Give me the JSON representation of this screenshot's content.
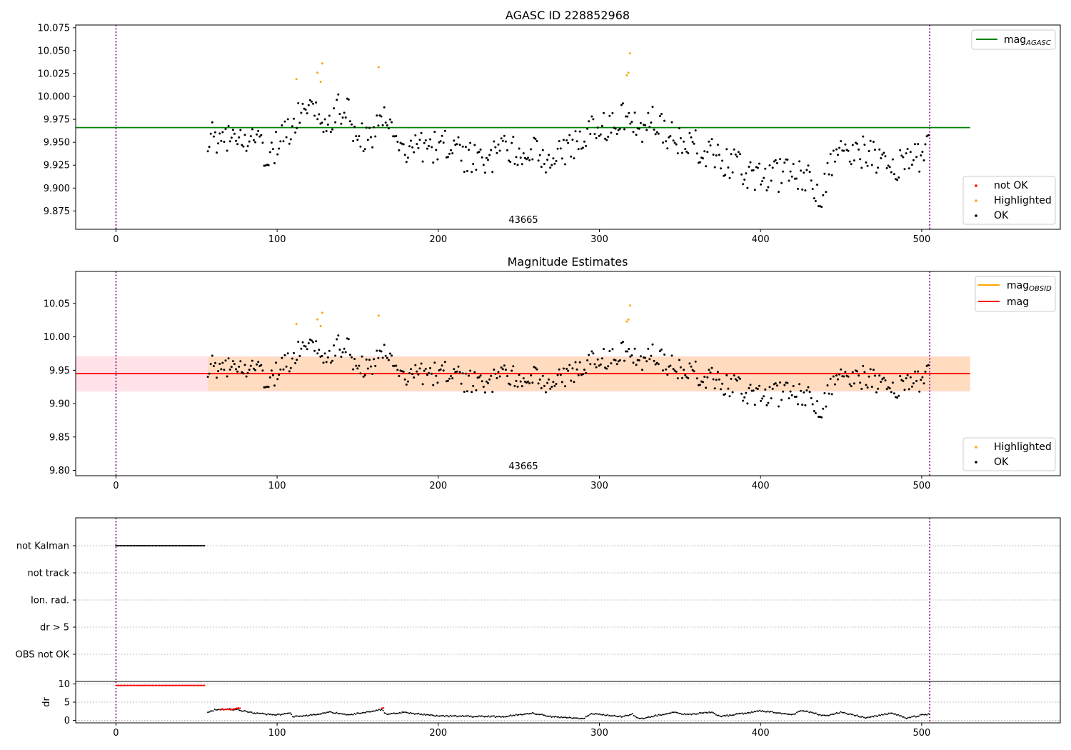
{
  "colors": {
    "ok": "#000000",
    "highlighted": "#ffa500",
    "not_ok": "#ff0000",
    "mag_agasc": "#008000",
    "mag": "#ff0000",
    "mag_obsid": "#ffa500",
    "band_outer": "#ffc0cb",
    "band_inner": "#ffdab9",
    "interval_line": "#800080",
    "grid": "#b0b0b0"
  },
  "chart_data": [
    {
      "type": "scatter",
      "title": "AGASC ID 228852968",
      "xlim": [
        -25,
        586
      ],
      "ylim": [
        9.855,
        10.078
      ],
      "x_ticks": [
        "0",
        "100",
        "200",
        "300",
        "400",
        "500"
      ],
      "y_ticks": [
        "9.875",
        "9.900",
        "9.925",
        "9.950",
        "9.975",
        "10.000",
        "10.025",
        "10.050",
        "10.075"
      ],
      "annotation": "43665",
      "interval_markers": [
        0,
        505
      ],
      "mag_agasc": 9.966,
      "legend_lines": [
        "mag_AGASC"
      ],
      "legend_points": [
        "not OK",
        "Highlighted",
        "OK"
      ],
      "highlighted_points": [
        [
          112,
          10.019
        ],
        [
          125,
          10.026
        ],
        [
          127,
          10.016
        ],
        [
          128,
          10.036
        ],
        [
          163,
          10.032
        ],
        [
          317,
          10.023
        ],
        [
          318,
          10.026
        ],
        [
          319,
          10.047
        ]
      ],
      "grid": false
    },
    {
      "type": "scatter",
      "title": "Magnitude Estimates",
      "xlim": [
        -25,
        586
      ],
      "ylim": [
        9.792,
        10.098
      ],
      "x_ticks": [
        "0",
        "100",
        "200",
        "300",
        "400",
        "500"
      ],
      "y_ticks": [
        "9.80",
        "9.85",
        "9.90",
        "9.95",
        "10.00",
        "10.05"
      ],
      "annotation": "43665",
      "interval_markers": [
        0,
        505
      ],
      "mag": 9.945,
      "mag_obsid": 9.945,
      "band_outer": [
        9.918,
        9.971
      ],
      "band_inner": [
        9.919,
        9.97
      ],
      "legend_lines": [
        "mag_OBSID",
        "mag"
      ],
      "legend_points": [
        "Highlighted",
        "OK"
      ],
      "highlighted_points": [
        [
          112,
          10.019
        ],
        [
          125,
          10.026
        ],
        [
          127,
          10.016
        ],
        [
          128,
          10.036
        ],
        [
          163,
          10.032
        ],
        [
          317,
          10.023
        ],
        [
          318,
          10.026
        ],
        [
          319,
          10.047
        ]
      ],
      "grid": false
    },
    {
      "type": "scatter",
      "title": "",
      "xlim": [
        -25,
        586
      ],
      "flag_categories": [
        "not Kalman",
        "not track",
        "Ion. rad.",
        "dr > 5",
        "OBS not OK"
      ],
      "not_kalman_range": [
        0,
        55
      ],
      "grid": true
    },
    {
      "type": "scatter",
      "title": "",
      "xlim": [
        -25,
        586
      ],
      "ylim": [
        -0.7,
        10.7
      ],
      "ylabel": "dr",
      "x_ticks": [
        "0",
        "100",
        "200",
        "300",
        "400",
        "500"
      ],
      "y_ticks": [
        "0",
        "5",
        "10"
      ],
      "interval_markers": [
        0,
        505
      ],
      "dr_clipped_range": [
        0,
        55
      ],
      "dr_clipped_value": 9.6,
      "dr_red_points": [
        [
          65,
          3.0
        ],
        [
          66,
          3.1
        ],
        [
          67,
          2.9
        ],
        [
          68,
          3.0
        ],
        [
          69,
          3.1
        ],
        [
          70,
          3.0
        ],
        [
          71,
          2.9
        ],
        [
          72,
          3.0
        ],
        [
          73,
          3.1
        ],
        [
          74,
          3.2
        ],
        [
          75,
          3.3
        ],
        [
          76,
          3.4
        ],
        [
          77,
          3.3
        ],
        [
          165,
          3.3
        ],
        [
          166,
          3.4
        ]
      ],
      "grid": true
    }
  ],
  "labels": {
    "title_top": "AGASC ID 228852968",
    "title_mid": "Magnitude Estimates",
    "annotation_top": "43665",
    "annotation_mid": "43665",
    "legend_top_line": "mag",
    "legend_top_line_sub": "AGASC",
    "legend_top_not_ok": "not OK",
    "legend_top_highlighted": "Highlighted",
    "legend_top_ok": "OK",
    "legend_mid_obsid": "mag",
    "legend_mid_obsid_sub": "OBSID",
    "legend_mid_mag": "mag",
    "legend_mid_highlighted": "Highlighted",
    "legend_mid_ok": "OK",
    "ylabel_dr": "dr"
  }
}
